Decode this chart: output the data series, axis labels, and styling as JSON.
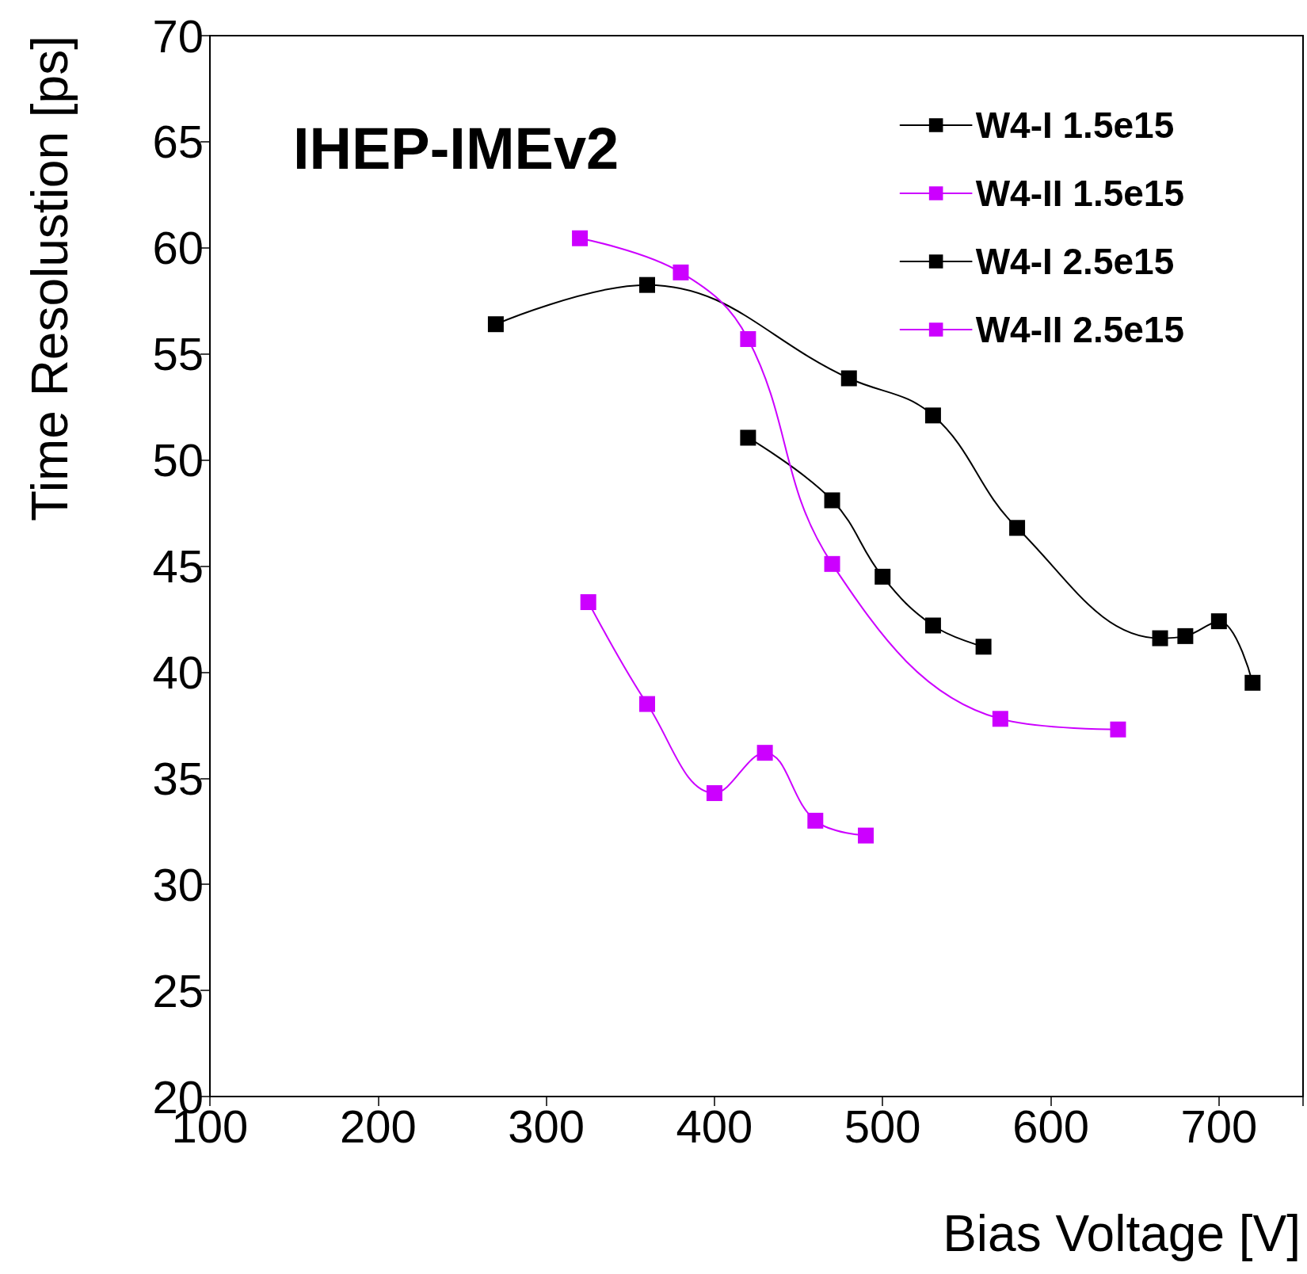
{
  "chart_data": {
    "type": "line",
    "xlabel": "Bias Voltage [V]",
    "ylabel": "Time Resolustion [ps]",
    "annotations": [
      "IHEP-IMEv2"
    ],
    "xlim": [
      100,
      750
    ],
    "xticks": [
      100,
      200,
      300,
      400,
      500,
      600,
      700
    ],
    "ylim": [
      20,
      70
    ],
    "yticks": [
      20,
      25,
      30,
      35,
      40,
      45,
      50,
      55,
      60,
      65,
      70
    ],
    "grid": false,
    "legend": "top right",
    "marker": "square",
    "line_style": "solid",
    "series": [
      {
        "name": "W4-I 1.5e15",
        "color": "#000000",
        "x": [
          420,
          470,
          500,
          530,
          560
        ],
        "values": [
          51.05,
          48.1,
          44.5,
          42.2,
          41.2
        ]
      },
      {
        "name": "W4-II 1.5e15",
        "color": "#cc00ff",
        "x": [
          325,
          360,
          400,
          430,
          460,
          490
        ],
        "values": [
          43.3,
          38.5,
          34.3,
          36.2,
          33.0,
          32.3
        ]
      },
      {
        "name": "W4-I 2.5e15",
        "color": "#000000",
        "x": [
          270,
          360,
          480,
          530,
          580,
          665,
          680,
          700,
          720
        ],
        "values": [
          56.4,
          58.25,
          53.85,
          52.1,
          46.8,
          41.6,
          41.7,
          42.4,
          39.5
        ]
      },
      {
        "name": "W4-II 2.5e15",
        "color": "#cc00ff",
        "x": [
          320,
          380,
          420,
          470,
          570,
          640
        ],
        "values": [
          60.45,
          58.84,
          55.7,
          45.1,
          37.8,
          37.3
        ]
      }
    ]
  }
}
